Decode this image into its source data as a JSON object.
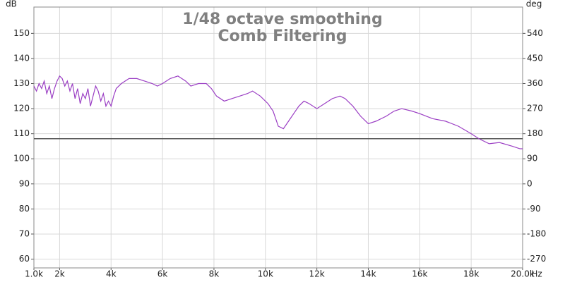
{
  "chart_data": {
    "type": "line",
    "title": "1/48 octave smoothing",
    "subtitle": "Comb Filtering",
    "y_label": "dB",
    "y2_label": "deg",
    "x_label": "Hz",
    "xlim": [
      1000,
      20000
    ],
    "xticks": [
      {
        "value": 1000,
        "label": "1.0k"
      },
      {
        "value": 2000,
        "label": "2k"
      },
      {
        "value": 4000,
        "label": "4k"
      },
      {
        "value": 6000,
        "label": "6k"
      },
      {
        "value": 8000,
        "label": "8k"
      },
      {
        "value": 10000,
        "label": "10k"
      },
      {
        "value": 12000,
        "label": "12k"
      },
      {
        "value": 14000,
        "label": "14k"
      },
      {
        "value": 16000,
        "label": "16k"
      },
      {
        "value": 18000,
        "label": "18k"
      },
      {
        "value": 20000,
        "label": "20.0k"
      }
    ],
    "ylim": [
      56.5,
      160.5
    ],
    "yticks": [
      60,
      70,
      80,
      90,
      100,
      110,
      120,
      130,
      140,
      150
    ],
    "y2lim": [
      -301.5,
      634.5
    ],
    "y2ticks": [
      -270,
      -180,
      -90,
      0,
      90,
      180,
      270,
      360,
      450,
      540
    ],
    "grid": true,
    "reference_line": {
      "value": 108,
      "color": "#555555"
    },
    "series": [
      {
        "color": "#9b3fc4",
        "x": [
          1000,
          1100,
          1200,
          1300,
          1400,
          1500,
          1600,
          1700,
          1800,
          1900,
          2000,
          2100,
          2200,
          2300,
          2400,
          2500,
          2600,
          2700,
          2800,
          2900,
          3000,
          3100,
          3200,
          3300,
          3400,
          3500,
          3600,
          3700,
          3800,
          3900,
          4000,
          4100,
          4200,
          4400,
          4700,
          5000,
          5300,
          5600,
          5800,
          6000,
          6300,
          6600,
          6900,
          7100,
          7400,
          7700,
          7900,
          8100,
          8400,
          8700,
          9000,
          9300,
          9500,
          9800,
          10100,
          10300,
          10400,
          10500,
          10700,
          10900,
          11100,
          11300,
          11500,
          11700,
          12000,
          12300,
          12600,
          12900,
          13100,
          13400,
          13700,
          14000,
          14300,
          14700,
          15000,
          15300,
          15700,
          16000,
          16500,
          17000,
          17500,
          18000,
          18300,
          18700,
          19100,
          19600,
          19900,
          20000
        ],
        "values": [
          129,
          127,
          130,
          128,
          131,
          126,
          129,
          124,
          128,
          131,
          133,
          132,
          129,
          131,
          127,
          130,
          124,
          128,
          122,
          126,
          124,
          128,
          121,
          125,
          129,
          127,
          123,
          126,
          121,
          123,
          121,
          125,
          128,
          130,
          132,
          132,
          131,
          130,
          129,
          130,
          132,
          133,
          131,
          129,
          130,
          130,
          128,
          125,
          123,
          124,
          125,
          126,
          127,
          125,
          122,
          119,
          116,
          113,
          112,
          115,
          118,
          121,
          123,
          122,
          120,
          122,
          124,
          125,
          124,
          121,
          117,
          114,
          115,
          117,
          119,
          120,
          119,
          118,
          116,
          115,
          113,
          110,
          108,
          106,
          106.5,
          105,
          104,
          104
        ]
      }
    ]
  }
}
